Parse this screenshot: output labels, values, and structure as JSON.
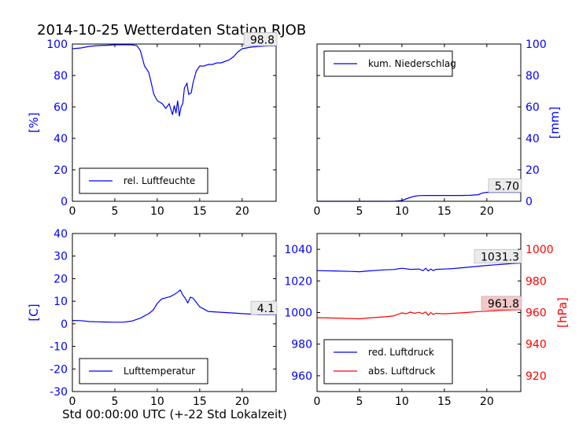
{
  "figure": {
    "title": "2014-10-25 Wetterdaten Station RJOB",
    "xlabel": "Std 00:00:00 UTC (+-22 Std Lokalzeit)"
  },
  "colors": {
    "blue": "#0000ff",
    "red": "#ff0000",
    "black": "#000000",
    "annot_bg": "#ebebeb",
    "annot_bg_red": "#f2c8c8"
  },
  "chart_data": [
    {
      "type": "line",
      "id": "humidity",
      "xlim": [
        0,
        24
      ],
      "ylim": [
        0,
        100
      ],
      "xticks": [
        0,
        5,
        10,
        15,
        20
      ],
      "yticks": [
        0,
        20,
        40,
        60,
        80,
        100
      ],
      "ylabel": "[%]",
      "axis_side": "left",
      "axis_color": "blue",
      "legend": {
        "placement": "lower-left"
      },
      "annotation": "98.8",
      "series": [
        {
          "name": "rel. Luftfeuchte",
          "color": "blue",
          "x": [
            0,
            1,
            2,
            3,
            4,
            5,
            6,
            7,
            7.6,
            8,
            8.2,
            8.5,
            9,
            9.3,
            9.6,
            10,
            10.3,
            10.6,
            11,
            11.4,
            11.8,
            12,
            12.2,
            12.4,
            12.6,
            12.8,
            13,
            13.2,
            13.5,
            13.7,
            14,
            14.2,
            14.6,
            15,
            15.5,
            16,
            16.5,
            17,
            17.5,
            18,
            18.5,
            19,
            19.5,
            20,
            21,
            22,
            23,
            24
          ],
          "y": [
            97,
            97.5,
            98.5,
            99,
            99.2,
            99.5,
            99.5,
            99.5,
            99,
            96,
            92,
            86,
            82,
            75,
            68,
            64,
            63,
            62,
            59,
            62,
            55,
            61,
            56,
            64,
            54,
            60,
            62,
            72,
            75,
            68,
            69,
            75,
            83,
            86,
            86,
            87,
            87,
            88,
            88,
            89,
            90,
            92,
            95,
            97,
            98,
            98.5,
            98.8,
            98.8
          ]
        }
      ]
    },
    {
      "type": "line",
      "id": "precipitation",
      "xlim": [
        0,
        24
      ],
      "ylim": [
        0,
        100
      ],
      "xticks": [
        0,
        5,
        10,
        15,
        20
      ],
      "yticks": [
        0,
        20,
        40,
        60,
        80,
        100
      ],
      "ylabel": "[mm]",
      "axis_side": "right",
      "axis_color": "blue",
      "legend": {
        "placement": "upper-left"
      },
      "annotation": "5.70",
      "series": [
        {
          "name": "kum. Niederschlag",
          "color": "blue",
          "x": [
            0,
            5,
            9,
            10,
            10.5,
            11,
            11.5,
            12,
            13,
            15,
            17,
            18,
            19,
            19.5,
            20,
            24
          ],
          "y": [
            0,
            0,
            0,
            0.5,
            1.5,
            2.5,
            3.2,
            3.6,
            3.7,
            3.7,
            3.7,
            3.8,
            4.2,
            5.3,
            5.7,
            5.7
          ]
        }
      ]
    },
    {
      "type": "line",
      "id": "temperature",
      "xlim": [
        0,
        24
      ],
      "ylim": [
        -30,
        40
      ],
      "xticks": [
        0,
        5,
        10,
        15,
        20
      ],
      "yticks": [
        -30,
        -20,
        -10,
        0,
        10,
        20,
        30,
        40
      ],
      "ylabel": "[C]",
      "axis_side": "left",
      "axis_color": "blue",
      "legend": {
        "placement": "lower-left"
      },
      "annotation": "4.1",
      "series": [
        {
          "name": "Lufttemperatur",
          "color": "blue",
          "x": [
            0,
            1,
            2,
            3,
            4,
            5,
            6,
            7,
            8,
            9,
            9.5,
            10,
            10.5,
            11,
            11.5,
            12,
            12.4,
            12.7,
            13,
            13.3,
            13.6,
            13.9,
            14.2,
            14.6,
            15,
            15.5,
            16,
            17,
            18,
            19,
            20,
            21,
            22,
            23,
            24
          ],
          "y": [
            1.5,
            1.4,
            1,
            0.9,
            0.8,
            0.7,
            0.7,
            1.2,
            2.5,
            4.5,
            6,
            9,
            11,
            11.5,
            12,
            13,
            14,
            15,
            12.8,
            11.3,
            9.3,
            11.8,
            11.4,
            9.5,
            7.5,
            6.5,
            5.5,
            5.2,
            5,
            4.8,
            4.5,
            4.3,
            4.1,
            4.1,
            4.1
          ]
        }
      ]
    },
    {
      "type": "line",
      "id": "pressure",
      "xlim": [
        0,
        24
      ],
      "ylim": [
        950,
        1050
      ],
      "xticks": [
        0,
        5,
        10,
        15,
        20
      ],
      "yticks": [
        960,
        980,
        1000,
        1020,
        1040
      ],
      "y2lim": [
        910,
        1010
      ],
      "y2ticks": [
        920,
        940,
        960,
        980,
        1000
      ],
      "y2label": "[hPa]",
      "axis_side": "left",
      "axis_color": "blue",
      "y2_axis_color": "red",
      "legend": {
        "placement": "lower-left"
      },
      "annotations": [
        "1031.3",
        "961.8"
      ],
      "series": [
        {
          "name": "red. Luftdruck",
          "color": "blue",
          "axis": "left",
          "x": [
            0,
            2,
            4,
            5,
            6,
            8,
            9,
            10,
            11,
            12,
            12.5,
            12.8,
            13.1,
            13.4,
            13.7,
            14,
            15,
            16,
            17,
            18,
            19,
            20,
            21,
            22,
            23,
            24
          ],
          "y": [
            1026.5,
            1026.3,
            1026,
            1025.8,
            1026.3,
            1027,
            1027.2,
            1028,
            1027.3,
            1027.5,
            1026.5,
            1028,
            1026.3,
            1027.5,
            1026.5,
            1027.3,
            1027.5,
            1027.8,
            1028.3,
            1028.8,
            1029.3,
            1029.8,
            1030.2,
            1030.6,
            1031,
            1031.3
          ]
        },
        {
          "name": "abs. Luftdruck",
          "color": "red",
          "axis": "right",
          "x": [
            0,
            2,
            4,
            5,
            6,
            8,
            9,
            10,
            10.5,
            11,
            11.5,
            12,
            12.4,
            12.8,
            13.1,
            13.4,
            13.7,
            14,
            15,
            16,
            17,
            18,
            19,
            20,
            21,
            22,
            23,
            24
          ],
          "y": [
            956.7,
            956.5,
            956.2,
            956,
            956.5,
            957.3,
            957.8,
            959.8,
            959.2,
            960.3,
            959.5,
            960.2,
            959.3,
            960.4,
            958.3,
            960,
            958.8,
            959.5,
            959.2,
            959.5,
            959.8,
            960.2,
            960.6,
            960.9,
            961.2,
            961.5,
            961.7,
            961.8
          ]
        }
      ]
    }
  ]
}
